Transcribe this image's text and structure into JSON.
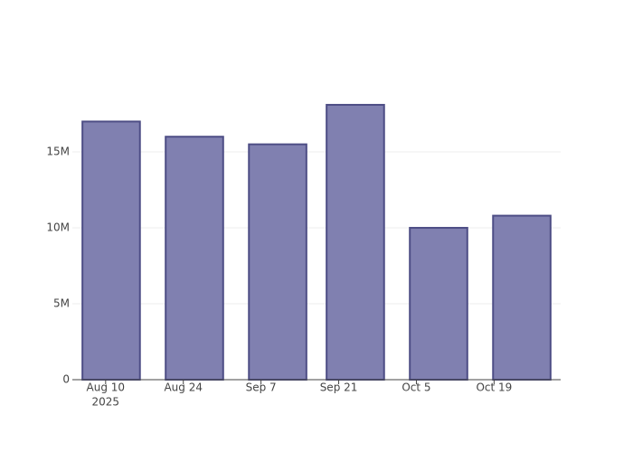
{
  "chart_data": {
    "type": "bar",
    "x": [
      "2025-08-11",
      "2025-08-26",
      "2025-09-10",
      "2025-09-24",
      "2025-10-09",
      "2025-10-24"
    ],
    "values": [
      17000000,
      16000000,
      15500000,
      18100000,
      10000000,
      10800000
    ],
    "color": "#8080b0",
    "edge_color": "#4d4d85",
    "xlim": [
      "2025-08-04",
      "2025-10-31"
    ],
    "xticks": [
      {
        "value": "2025-08-10",
        "label": "Aug 10",
        "sublabel": "2025"
      },
      {
        "value": "2025-08-24",
        "label": "Aug 24"
      },
      {
        "value": "2025-09-07",
        "label": "Sep 7"
      },
      {
        "value": "2025-09-21",
        "label": "Sep 21"
      },
      {
        "value": "2025-10-05",
        "label": "Oct 5"
      },
      {
        "value": "2025-10-19",
        "label": "Oct 19"
      }
    ],
    "ylim": [
      0,
      19050000
    ],
    "yticks": [
      0,
      {
        "value": 5000000,
        "label": "5M"
      },
      {
        "value": 10000000,
        "label": "10M"
      },
      {
        "value": 15000000,
        "label": "15M"
      }
    ],
    "grid": true
  }
}
